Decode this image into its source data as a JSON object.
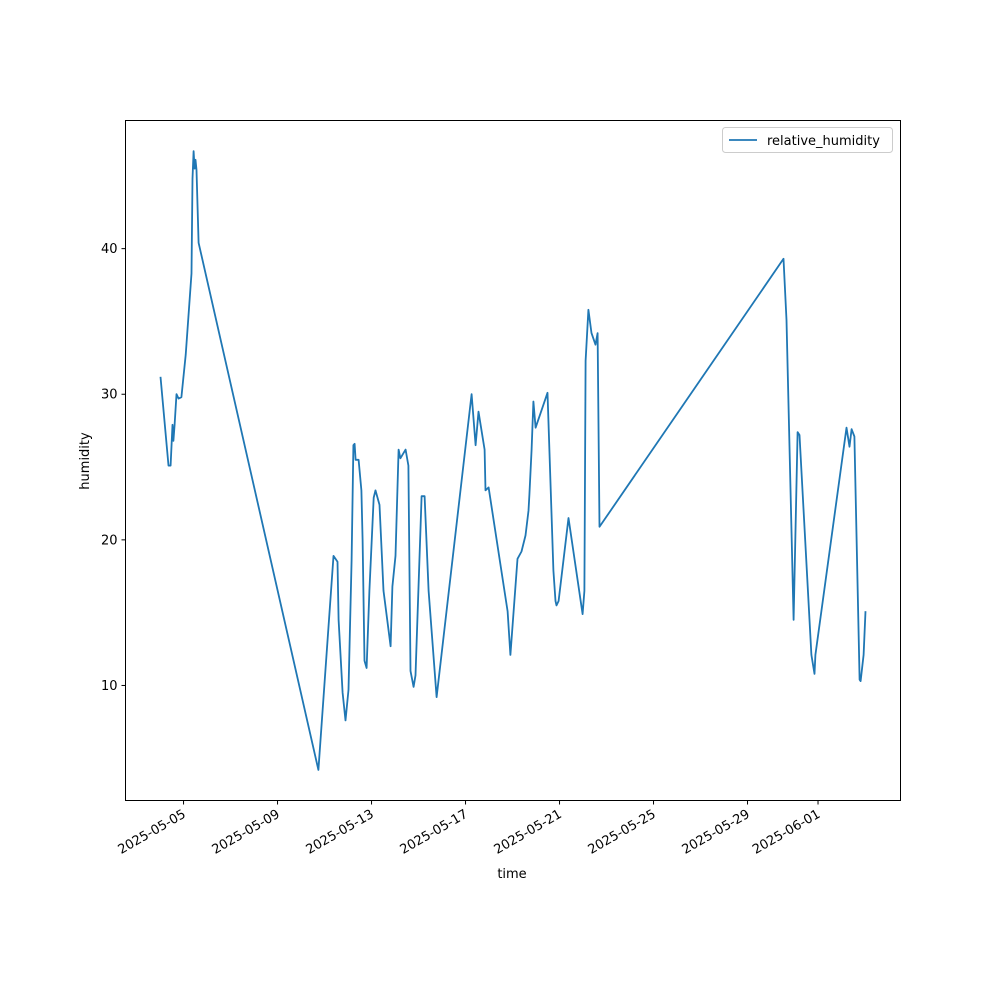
{
  "chart_data": {
    "type": "line",
    "title": "",
    "xlabel": "time",
    "ylabel": "humidity",
    "x_units": "days since 2025-05-05",
    "xlim": [
      -2.47,
      30.51
    ],
    "ylim": [
      2.1,
      48.8
    ],
    "grid": false,
    "legend_placement": "top-right",
    "xticks": [
      {
        "value": 0,
        "label": "2025-05-05"
      },
      {
        "value": 4,
        "label": "2025-05-09"
      },
      {
        "value": 8,
        "label": "2025-05-13"
      },
      {
        "value": 12,
        "label": "2025-05-17"
      },
      {
        "value": 16,
        "label": "2025-05-21"
      },
      {
        "value": 20,
        "label": "2025-05-25"
      },
      {
        "value": 24,
        "label": "2025-05-29"
      },
      {
        "value": 27,
        "label": "2025-06-01"
      }
    ],
    "yticks": [
      {
        "value": 10,
        "label": "10"
      },
      {
        "value": 20,
        "label": "20"
      },
      {
        "value": 30,
        "label": "30"
      },
      {
        "value": 40,
        "label": "40"
      }
    ],
    "series": [
      {
        "name": "relative_humidity",
        "color": "#1f77b4",
        "x": [
          -0.98,
          -0.64,
          -0.55,
          -0.47,
          -0.43,
          -0.38,
          -0.3,
          -0.21,
          -0.09,
          0.09,
          0.34,
          0.38,
          0.43,
          0.47,
          0.51,
          0.55,
          0.64,
          5.74,
          6.38,
          6.55,
          6.6,
          6.77,
          6.89,
          7.02,
          7.15,
          7.23,
          7.28,
          7.32,
          7.45,
          7.57,
          7.62,
          7.7,
          7.79,
          7.91,
          8.09,
          8.17,
          8.34,
          8.51,
          8.81,
          8.89,
          9.02,
          9.15,
          9.23,
          9.45,
          9.57,
          9.66,
          9.79,
          9.87,
          10.13,
          10.26,
          10.43,
          10.77,
          12.26,
          12.43,
          12.55,
          12.81,
          12.85,
          12.98,
          13.79,
          13.91,
          14.21,
          14.38,
          14.55,
          14.68,
          14.72,
          14.81,
          14.89,
          14.98,
          15.49,
          15.74,
          15.83,
          15.87,
          15.96,
          16.38,
          16.98,
          17.06,
          17.11,
          17.23,
          17.36,
          17.53,
          17.62,
          17.7,
          25.53,
          25.66,
          25.96,
          26.13,
          26.21,
          26.72,
          26.85,
          26.89,
          28.21,
          28.34,
          28.43,
          28.55,
          28.77,
          28.81,
          28.94,
          29.02
        ],
        "y": [
          31.2,
          25.1,
          25.1,
          27.9,
          26.8,
          27.9,
          30.0,
          29.7,
          29.8,
          32.7,
          38.3,
          44.8,
          46.7,
          45.5,
          46.1,
          45.4,
          40.4,
          4.2,
          18.9,
          18.5,
          14.5,
          9.5,
          7.6,
          9.7,
          18.6,
          26.5,
          26.6,
          25.5,
          25.5,
          23.4,
          20.0,
          11.7,
          11.2,
          16.5,
          22.9,
          23.4,
          22.4,
          16.5,
          12.7,
          16.8,
          18.9,
          26.2,
          25.6,
          26.2,
          25.1,
          11.0,
          9.9,
          10.7,
          23.0,
          23.0,
          16.5,
          9.2,
          30.0,
          26.5,
          28.8,
          26.2,
          23.4,
          23.6,
          15.1,
          12.1,
          18.7,
          19.2,
          20.3,
          22.0,
          23.1,
          26.2,
          29.5,
          27.7,
          30.1,
          17.9,
          15.8,
          15.5,
          15.8,
          21.5,
          14.9,
          16.5,
          32.3,
          35.8,
          34.2,
          33.4,
          34.2,
          20.9,
          39.3,
          35.1,
          14.5,
          27.4,
          27.2,
          12.1,
          10.8,
          12.1,
          27.7,
          26.4,
          27.6,
          27.1,
          10.4,
          10.3,
          12.1,
          15.1
        ]
      }
    ]
  }
}
